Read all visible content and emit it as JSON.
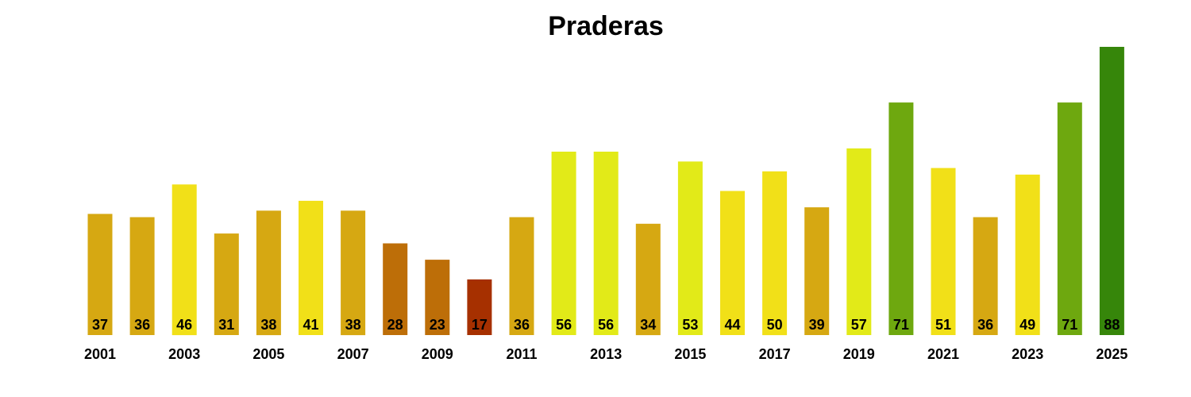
{
  "chart_data": {
    "type": "bar",
    "title": "Praderas",
    "xlabel": "",
    "ylabel": "",
    "ylim": [
      0,
      88
    ],
    "grid": false,
    "legend": "none",
    "categories": [
      "2001",
      "2002",
      "2003",
      "2004",
      "2005",
      "2006",
      "2007",
      "2008",
      "2009",
      "2010",
      "2011",
      "2012",
      "2013",
      "2014",
      "2015",
      "2016",
      "2017",
      "2018",
      "2019",
      "2020",
      "2021",
      "2022",
      "2023",
      "2024",
      "2025"
    ],
    "tick_labels": [
      "2001",
      "",
      "2003",
      "",
      "2005",
      "",
      "2007",
      "",
      "2009",
      "",
      "2011",
      "",
      "2013",
      "",
      "2015",
      "",
      "2017",
      "",
      "2019",
      "",
      "2021",
      "",
      "2023",
      "",
      "2025"
    ],
    "values": [
      37,
      36,
      46,
      31,
      38,
      41,
      38,
      28,
      23,
      17,
      36,
      56,
      56,
      34,
      53,
      44,
      50,
      39,
      57,
      71,
      51,
      36,
      49,
      71,
      88
    ],
    "colors": [
      "#d6a812",
      "#d6a812",
      "#f1e018",
      "#d6a812",
      "#d6a812",
      "#f1e018",
      "#d6a812",
      "#bd6e08",
      "#bd6e08",
      "#a63000",
      "#d6a812",
      "#e2ea18",
      "#e2ea18",
      "#d6a812",
      "#e2ea18",
      "#f1e018",
      "#f1e018",
      "#d6a812",
      "#e2ea18",
      "#6ea80f",
      "#f1e018",
      "#d6a812",
      "#f1e018",
      "#6ea80f",
      "#36860a"
    ]
  }
}
